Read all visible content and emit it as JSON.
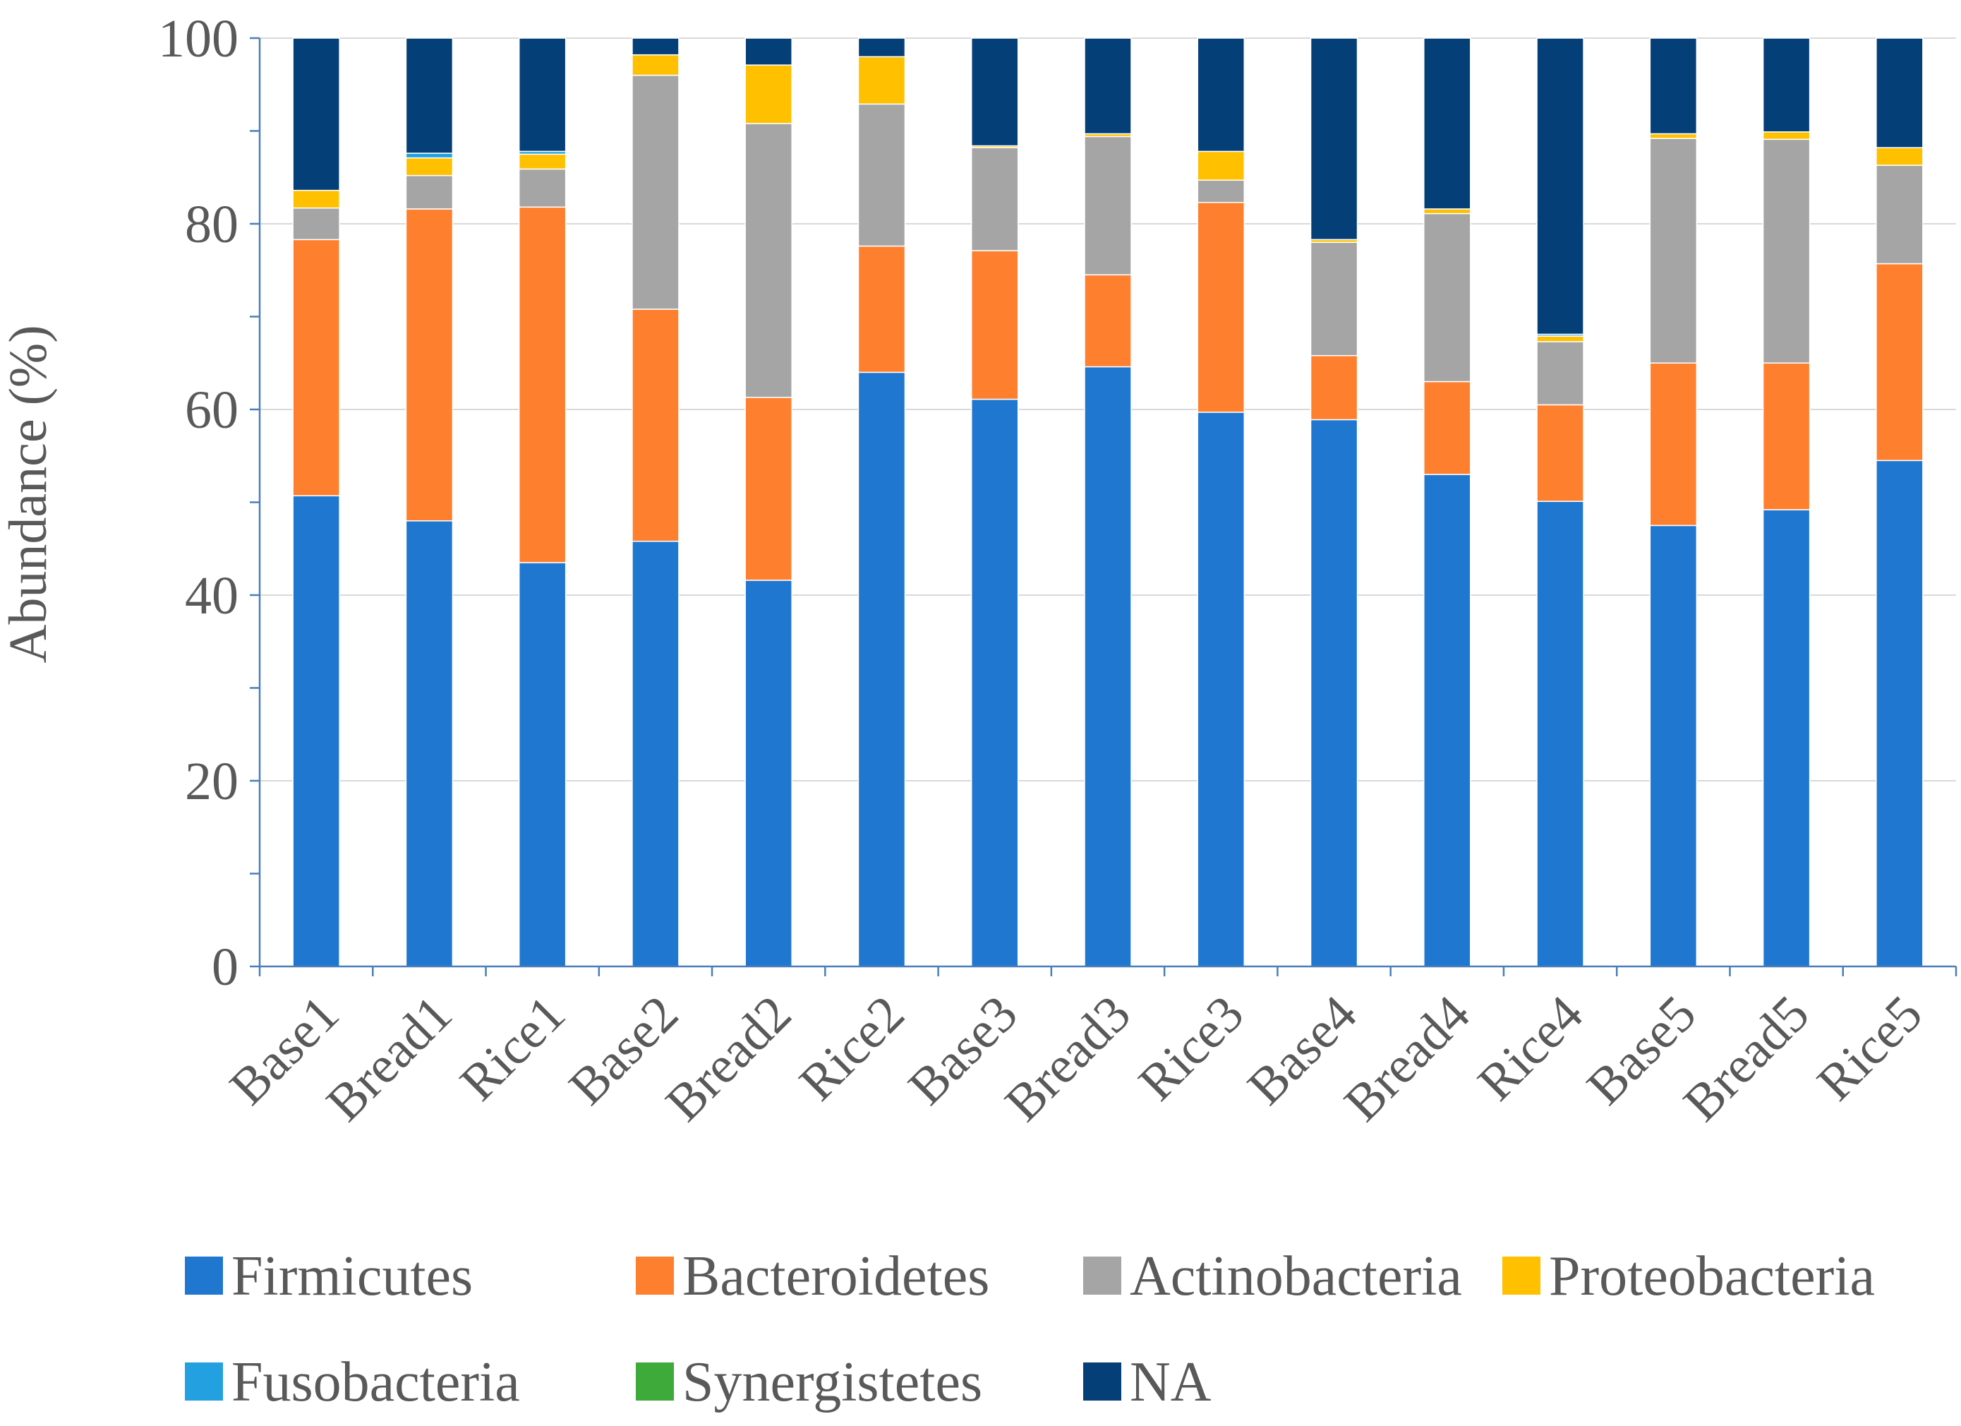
{
  "chart_data": {
    "type": "bar",
    "stacked": true,
    "ylabel": "Abundance (%)",
    "xlabel": "",
    "ylim": [
      0,
      100
    ],
    "yticks": [
      0,
      20,
      40,
      60,
      80,
      100
    ],
    "grid": true,
    "legend_position": "bottom",
    "categories": [
      "Base1",
      "Bread1",
      "Rice1",
      "Base2",
      "Bread2",
      "Rice2",
      "Base3",
      "Bread3",
      "Rice3",
      "Base4",
      "Bread4",
      "Rice4",
      "Base5",
      "Bread5",
      "Rice5"
    ],
    "series": [
      {
        "name": "Firmicutes",
        "color": "#1F77D0",
        "values": [
          50.7,
          48.0,
          43.5,
          45.8,
          41.6,
          64.0,
          61.1,
          64.6,
          59.7,
          58.9,
          53.0,
          50.1,
          47.5,
          49.2,
          54.5
        ]
      },
      {
        "name": "Bacteroidetes",
        "color": "#FE7F2D",
        "values": [
          27.6,
          33.6,
          38.3,
          25.0,
          19.7,
          13.6,
          16.0,
          9.9,
          22.6,
          6.9,
          10.0,
          10.4,
          17.5,
          15.8,
          21.2
        ]
      },
      {
        "name": "Actinobacteria",
        "color": "#A5A5A5",
        "values": [
          3.4,
          3.6,
          4.1,
          25.2,
          29.5,
          15.3,
          11.1,
          14.9,
          2.4,
          12.2,
          18.1,
          6.8,
          24.2,
          24.1,
          10.6
        ]
      },
      {
        "name": "Proteobacteria",
        "color": "#FFC000",
        "values": [
          1.9,
          1.9,
          1.6,
          2.2,
          6.3,
          5.1,
          0.2,
          0.3,
          3.1,
          0.3,
          0.5,
          0.6,
          0.5,
          0.8,
          1.9
        ]
      },
      {
        "name": "Fusobacteria",
        "color": "#23A0E0",
        "values": [
          0.0,
          0.5,
          0.3,
          0.0,
          0.0,
          0.0,
          0.0,
          0.0,
          0.0,
          0.0,
          0.0,
          0.2,
          0.0,
          0.0,
          0.0
        ]
      },
      {
        "name": "Synergistetes",
        "color": "#3DAA3A",
        "values": [
          0.0,
          0.0,
          0.0,
          0.0,
          0.0,
          0.0,
          0.0,
          0.0,
          0.0,
          0.0,
          0.0,
          0.0,
          0.0,
          0.0,
          0.0
        ]
      },
      {
        "name": "NA",
        "color": "#043F78",
        "values": [
          16.4,
          12.4,
          12.2,
          1.8,
          2.9,
          2.0,
          11.6,
          10.3,
          12.2,
          21.7,
          18.4,
          31.9,
          10.3,
          10.1,
          11.8
        ]
      }
    ]
  }
}
